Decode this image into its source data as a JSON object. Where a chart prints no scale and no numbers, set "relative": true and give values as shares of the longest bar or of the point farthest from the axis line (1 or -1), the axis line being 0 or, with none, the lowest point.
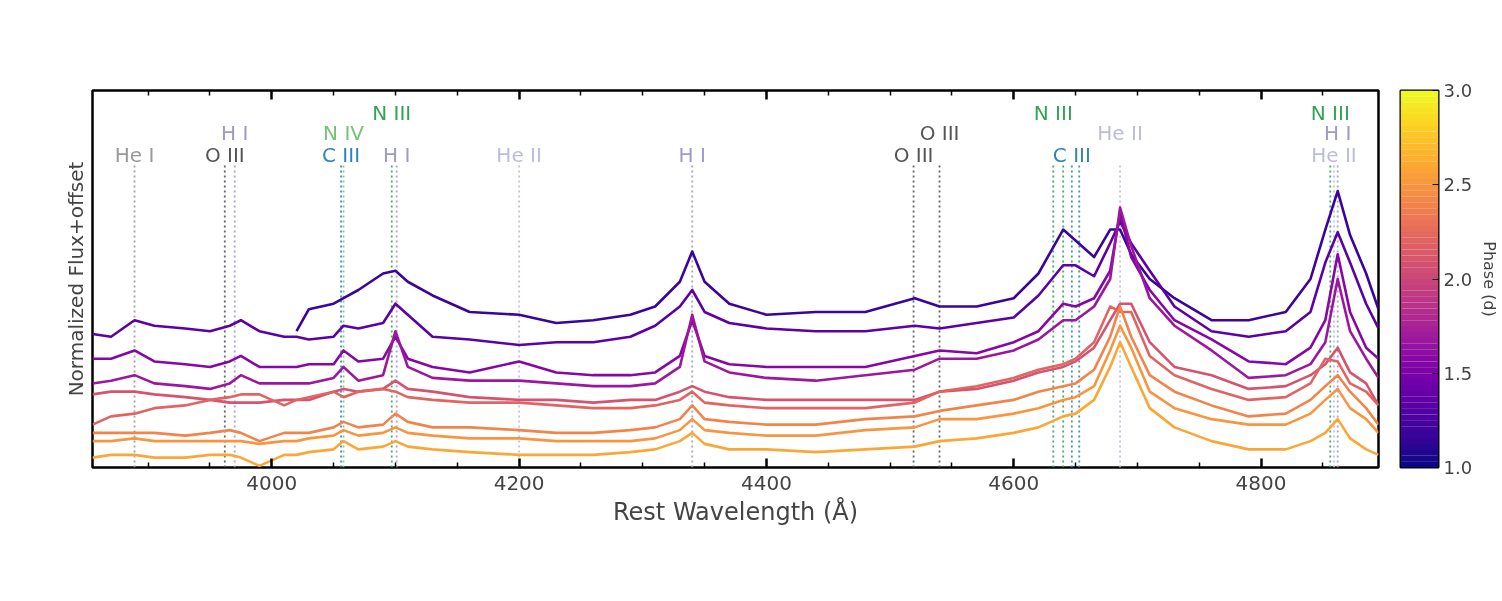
{
  "chart_data": {
    "type": "line",
    "relative": true,
    "xlabel": "Rest Wavelength (Å)",
    "ylabel": "Normalized Flux+offset",
    "clabel": "Phase (d)",
    "xlim": [
      3855,
      4895
    ],
    "xticks": [
      {
        "value": 3900,
        "label": null
      },
      {
        "value": 3950,
        "label": null
      },
      4000,
      {
        "value": 4050,
        "label": null
      },
      {
        "value": 4100,
        "label": null
      },
      {
        "value": 4150,
        "label": null
      },
      4200,
      {
        "value": 4250,
        "label": null
      },
      {
        "value": 4300,
        "label": null
      },
      {
        "value": 4350,
        "label": null
      },
      4400,
      {
        "value": 4450,
        "label": null
      },
      {
        "value": 4500,
        "label": null
      },
      {
        "value": 4550,
        "label": null
      },
      4600,
      {
        "value": 4650,
        "label": null
      },
      {
        "value": 4700,
        "label": null
      },
      {
        "value": 4750,
        "label": null
      },
      4800,
      {
        "value": 4850,
        "label": null
      }
    ],
    "clim": [
      1.0,
      3.0
    ],
    "cticks": [
      {
        "value": 1,
        "label": "1.0"
      },
      {
        "value": 1.5,
        "label": "1.5"
      },
      {
        "value": 2,
        "label": "2.0"
      },
      {
        "value": 2.5,
        "label": "2.5"
      },
      {
        "value": 3,
        "label": "3.0"
      }
    ],
    "grid": false,
    "marker": "none",
    "line_style": "solid",
    "x": [
      3855,
      3870,
      3889,
      3905,
      3930,
      3950,
      3966,
      3975,
      3990,
      4010,
      4020,
      4030,
      4050,
      4058,
      4070,
      4090,
      4100,
      4110,
      4130,
      4160,
      4200,
      4230,
      4260,
      4290,
      4310,
      4330,
      4340,
      4350,
      4370,
      4400,
      4440,
      4480,
      4520,
      4540,
      4570,
      4600,
      4620,
      4640,
      4650,
      4665,
      4678,
      4686,
      4695,
      4710,
      4730,
      4760,
      4790,
      4820,
      4840,
      4852,
      4862,
      4872,
      4885,
      4895
    ],
    "series": [
      {
        "color": "#3b049a",
        "values": [
          null,
          null,
          null,
          null,
          null,
          null,
          null,
          null,
          null,
          null,
          0.49,
          0.57,
          0.59,
          0.61,
          0.64,
          0.7,
          0.71,
          0.67,
          0.62,
          0.56,
          0.55,
          0.52,
          0.53,
          0.55,
          0.58,
          0.67,
          0.78,
          0.67,
          0.59,
          0.55,
          0.56,
          0.56,
          0.61,
          0.58,
          0.58,
          0.61,
          0.7,
          0.86,
          0.82,
          0.76,
          0.86,
          0.86,
          0.77,
          0.68,
          0.61,
          0.53,
          0.53,
          0.56,
          0.68,
          0.86,
          1,
          0.84,
          0.7,
          0.57
        ]
      },
      {
        "color": "#5c01a6",
        "values": [
          0.48,
          0.47,
          0.53,
          0.51,
          0.5,
          0.49,
          0.51,
          0.53,
          0.49,
          0.47,
          0.47,
          0.46,
          0.47,
          0.51,
          0.5,
          0.52,
          0.59,
          0.55,
          0.47,
          0.46,
          0.44,
          0.45,
          0.45,
          0.47,
          0.51,
          0.58,
          0.64,
          0.56,
          0.52,
          0.5,
          0.49,
          0.49,
          0.51,
          0.5,
          0.52,
          0.54,
          0.62,
          0.73,
          0.73,
          0.69,
          0.81,
          0.89,
          0.81,
          0.71,
          0.58,
          0.49,
          0.47,
          0.49,
          0.56,
          0.74,
          0.85,
          0.74,
          0.59,
          0.5
        ]
      },
      {
        "color": "#8606a6",
        "values": [
          0.39,
          0.39,
          0.42,
          0.38,
          0.37,
          0.36,
          0.38,
          0.4,
          0.36,
          0.36,
          0.36,
          0.37,
          0.37,
          0.42,
          0.38,
          0.39,
          0.47,
          0.39,
          0.36,
          0.34,
          0.38,
          0.34,
          0.33,
          0.33,
          0.34,
          0.4,
          0.53,
          0.4,
          0.37,
          0.36,
          0.36,
          0.36,
          0.4,
          0.42,
          0.41,
          0.45,
          0.49,
          0.59,
          0.58,
          0.61,
          0.71,
          0.92,
          0.76,
          0.64,
          0.53,
          0.46,
          0.38,
          0.37,
          0.43,
          0.53,
          0.77,
          0.56,
          0.43,
          0.39
        ]
      },
      {
        "color": "#9c179e",
        "values": [
          0.3,
          0.31,
          0.33,
          0.3,
          0.29,
          0.28,
          0.3,
          0.33,
          0.3,
          0.3,
          0.3,
          0.3,
          0.32,
          0.36,
          0.31,
          0.33,
          0.49,
          0.36,
          0.32,
          0.31,
          0.31,
          0.3,
          0.29,
          0.29,
          0.3,
          0.36,
          0.55,
          0.38,
          0.34,
          0.32,
          0.31,
          0.33,
          0.35,
          0.39,
          0.39,
          0.42,
          0.46,
          0.53,
          0.53,
          0.58,
          0.68,
          0.94,
          0.8,
          0.61,
          0.51,
          0.42,
          0.32,
          0.33,
          0.37,
          0.45,
          0.68,
          0.49,
          0.39,
          0.32
        ]
      },
      {
        "color": "#d5536f",
        "values": [
          0.26,
          0.27,
          0.27,
          0.26,
          0.25,
          0.24,
          0.23,
          0.23,
          0.23,
          0.24,
          0.24,
          0.24,
          0.27,
          0.28,
          0.27,
          0.28,
          0.31,
          0.28,
          0.27,
          0.25,
          0.24,
          0.24,
          0.23,
          0.24,
          0.24,
          0.27,
          0.29,
          0.27,
          0.25,
          0.24,
          0.24,
          0.24,
          0.24,
          0.27,
          0.28,
          0.31,
          0.34,
          0.36,
          0.38,
          0.43,
          0.53,
          0.59,
          0.59,
          0.45,
          0.36,
          0.33,
          0.28,
          0.29,
          0.33,
          0.37,
          0.43,
          0.34,
          0.3,
          0.22
        ]
      },
      {
        "color": "#e16462",
        "values": [
          0.15,
          0.18,
          0.19,
          0.21,
          0.22,
          0.24,
          0.25,
          0.26,
          0.26,
          0.22,
          0.24,
          0.25,
          0.27,
          0.25,
          0.27,
          0.28,
          0.27,
          0.25,
          0.24,
          0.23,
          0.23,
          0.22,
          0.21,
          0.21,
          0.22,
          0.24,
          0.27,
          0.23,
          0.22,
          0.21,
          0.21,
          0.21,
          0.23,
          0.27,
          0.29,
          0.32,
          0.35,
          0.37,
          0.39,
          0.45,
          0.58,
          0.56,
          0.56,
          0.4,
          0.33,
          0.28,
          0.24,
          0.25,
          0.3,
          0.39,
          0.38,
          0.3,
          0.27,
          0.22
        ]
      },
      {
        "color": "#f1844b",
        "values": [
          0.12,
          0.12,
          0.12,
          0.12,
          0.11,
          0.12,
          0.13,
          0.12,
          0.09,
          0.12,
          0.12,
          0.12,
          0.14,
          0.16,
          0.14,
          0.15,
          0.19,
          0.16,
          0.14,
          0.14,
          0.13,
          0.12,
          0.12,
          0.13,
          0.14,
          0.17,
          0.22,
          0.17,
          0.16,
          0.15,
          0.15,
          0.17,
          0.18,
          0.2,
          0.22,
          0.24,
          0.27,
          0.29,
          0.3,
          0.35,
          0.47,
          0.58,
          0.47,
          0.33,
          0.27,
          0.22,
          0.18,
          0.19,
          0.24,
          0.29,
          0.33,
          0.27,
          0.21,
          0.15
        ]
      },
      {
        "color": "#f89540",
        "values": [
          0.09,
          0.09,
          0.1,
          0.09,
          0.09,
          0.09,
          0.09,
          0.09,
          0.08,
          0.09,
          0.09,
          0.1,
          0.11,
          0.13,
          0.11,
          0.12,
          0.14,
          0.12,
          0.11,
          0.1,
          0.1,
          0.09,
          0.09,
          0.09,
          0.1,
          0.13,
          0.17,
          0.13,
          0.12,
          0.11,
          0.11,
          0.13,
          0.14,
          0.17,
          0.17,
          0.19,
          0.21,
          0.24,
          0.25,
          0.29,
          0.42,
          0.51,
          0.43,
          0.27,
          0.21,
          0.17,
          0.15,
          0.15,
          0.19,
          0.24,
          0.28,
          0.21,
          0.17,
          0.12
        ]
      },
      {
        "color": "#fca636",
        "values": [
          0.03,
          0.04,
          0.04,
          0.03,
          0.03,
          0.04,
          0.04,
          0.03,
          0,
          0.04,
          0.04,
          0.05,
          0.06,
          0.09,
          0.06,
          0.07,
          0.09,
          0.07,
          0.06,
          0.05,
          0.04,
          0.04,
          0.04,
          0.05,
          0.06,
          0.09,
          0.12,
          0.08,
          0.06,
          0.06,
          0.05,
          0.06,
          0.07,
          0.09,
          0.1,
          0.12,
          0.14,
          0.18,
          0.19,
          0.24,
          0.36,
          0.45,
          0.36,
          0.21,
          0.14,
          0.09,
          0.06,
          0.06,
          0.09,
          0.12,
          0.17,
          0.1,
          0.06,
          0.04
        ]
      }
    ],
    "ref_lines": [
      {
        "axis": "x",
        "value": 3889,
        "label": "He I",
        "color": "#999999",
        "line_style": "dotted"
      },
      {
        "axis": "x",
        "value": 3962,
        "label": "O III",
        "color": "#555555",
        "line_style": "dotted"
      },
      {
        "axis": "x",
        "value": 3970,
        "label": "H I",
        "color": "#9e9ac8",
        "line_style": "dotted"
      },
      {
        "axis": "x",
        "value": 4056,
        "label": "C III",
        "color": "#3182bd",
        "line_style": "dotted"
      },
      {
        "axis": "x",
        "value": 4058,
        "label": "N IV",
        "color": "#74c476",
        "line_style": "dotted"
      },
      {
        "axis": "x",
        "value": 4101,
        "label": "H I",
        "color": "#9e9ac8",
        "line_style": "dotted"
      },
      {
        "axis": "x",
        "value": 4097,
        "label": "N III",
        "color": "#31a354",
        "line_style": "dotted"
      },
      {
        "axis": "x",
        "value": 4200,
        "label": "He II",
        "color": "#bcbddc",
        "line_style": "dotted"
      },
      {
        "axis": "x",
        "value": 4340,
        "label": "H I",
        "color": "#9e9ac8",
        "line_style": "dotted"
      },
      {
        "axis": "x",
        "value": 4519,
        "label": "O III",
        "color": "#555555",
        "line_style": "dotted"
      },
      {
        "axis": "x",
        "value": 4540,
        "label": "O III",
        "color": "#555555",
        "line_style": "dotted"
      },
      {
        "axis": "x",
        "value": 4647,
        "label": "C III",
        "color": "#3182bd",
        "line_style": "dotted"
      },
      {
        "axis": "x",
        "value": 4653,
        "label": null,
        "color": "#3182bd",
        "line_style": "dotted"
      },
      {
        "axis": "x",
        "value": 4686,
        "label": "He II",
        "color": "#bcbddc",
        "line_style": "dotted"
      },
      {
        "axis": "x",
        "value": 4632,
        "label": "N III",
        "color": "#31a354",
        "line_style": "dotted"
      },
      {
        "axis": "x",
        "value": 4640,
        "label": null,
        "color": "#31a354",
        "line_style": "dotted"
      },
      {
        "axis": "x",
        "value": 4859,
        "label": "He II",
        "color": "#bcbddc",
        "line_style": "dotted"
      },
      {
        "axis": "x",
        "value": 4862,
        "label": "H I",
        "color": "#9e9ac8",
        "line_style": "dotted"
      },
      {
        "axis": "x",
        "value": 4856,
        "label": "N III",
        "color": "#31a354",
        "line_style": "dotted"
      }
    ]
  }
}
